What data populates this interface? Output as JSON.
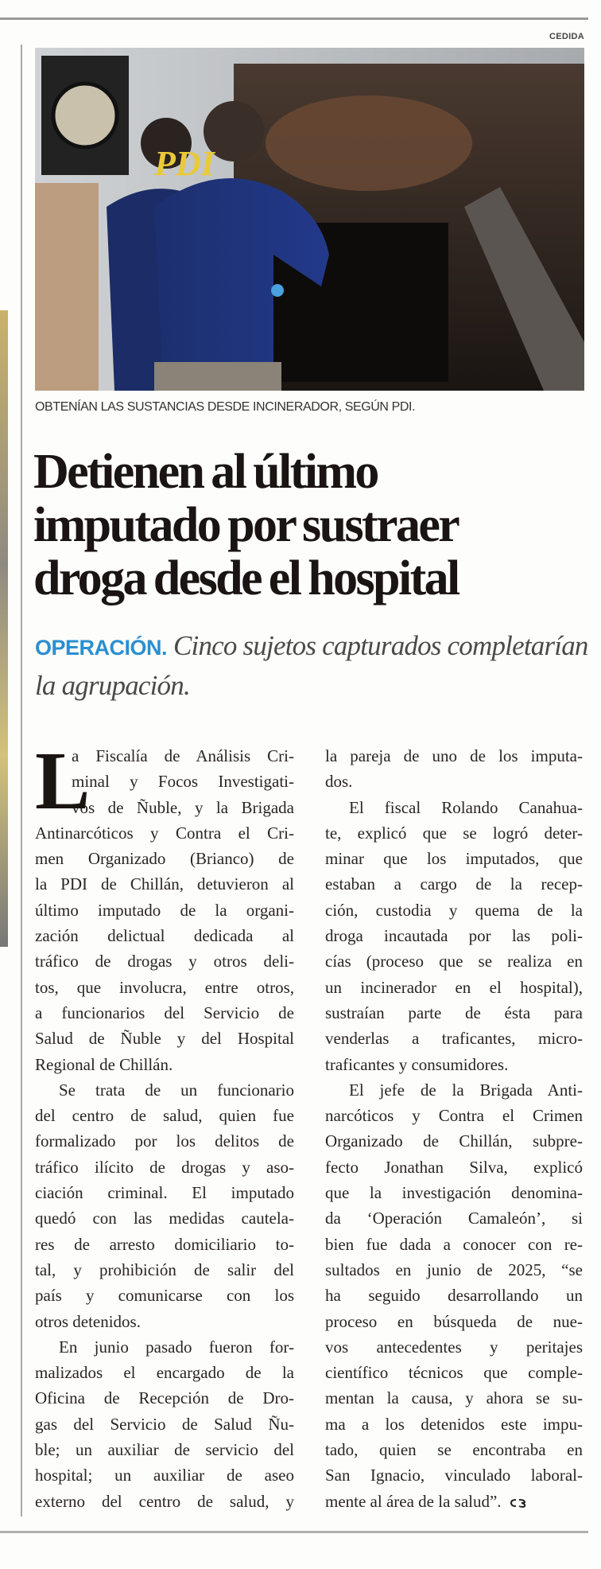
{
  "photo": {
    "credit": "CEDIDA",
    "jacket_text": "PDI",
    "caption": "OBTENÍAN LAS SUSTANCIAS DESDE INCINERADOR, SEGÚN PDI."
  },
  "headline": {
    "lines": [
      "Detienen al último",
      "imputado por sustraer",
      "droga desde el hospital"
    ]
  },
  "subhead": {
    "kicker": "OPERACIÓN.",
    "text": "Cinco sujetos capturados completarían la agrupación.",
    "kicker_color": "#2a8fd0"
  },
  "article": {
    "drop_cap": "L",
    "columns": [
      {
        "paragraphs": [
          {
            "lines": [
              "a Fiscalía de Análisis Cri-",
              "minal y Focos Investigati-",
              "vos de Ñuble, y la Brigada",
              "Antinarcóticos y Contra el Cri-",
              "men Organizado (Brianco) de",
              "la PDI de Chillán, detuvieron al",
              "último imputado de la organi-",
              "zación delictual dedicada al",
              "tráfico de drogas y otros deli-",
              "tos, que involucra, entre otros,",
              "a funcionarios del Servicio de",
              "Salud de Ñuble y del Hospital",
              "Regional de Chillán."
            ]
          },
          {
            "lines": [
              "Se trata de un funcionario",
              "del centro de salud, quien fue",
              "formalizado por los delitos de",
              "tráfico ilícito de drogas y aso-",
              "ciación criminal. El imputado",
              "quedó con las medidas cautela-",
              "res de arresto domiciliario to-",
              "tal, y prohibición de salir del",
              "país y comunicarse con los",
              "otros detenidos."
            ]
          },
          {
            "lines": [
              "En junio pasado fueron for-",
              "malizados el encargado de la",
              "Oficina de Recepción de Dro-",
              "gas del Servicio de Salud Ñu-",
              "ble; un auxiliar de servicio del",
              "hospital; un auxiliar de aseo",
              "externo del centro de salud, y"
            ]
          }
        ]
      },
      {
        "paragraphs": [
          {
            "lines": [
              "la pareja de uno de los imputa-",
              "dos."
            ]
          },
          {
            "lines": [
              "El fiscal Rolando Canahua-",
              "te, explicó que se logró deter-",
              "minar que los imputados, que",
              "estaban a cargo de la recep-",
              "ción, custodia y quema de la",
              "droga incautada por las poli-",
              "cías (proceso que se realiza en",
              "un incinerador en el hospital),",
              "sustraían parte de ésta para",
              "venderlas a traficantes, micro-",
              "traficantes y consumidores."
            ]
          },
          {
            "lines": [
              "El jefe de la Brigada Anti-",
              "narcóticos y Contra el Crimen",
              "Organizado de Chillán, subpre-",
              "fecto Jonathan Silva, explicó",
              "que la investigación denomina-",
              "da ‘Operación Camaleón’, si",
              "bien fue dada a conocer con re-",
              "sultados en junio de 2025, “se",
              "ha seguido desarrollando un",
              "proceso en búsqueda de nue-",
              "vos antecedentes y peritajes",
              "científico técnicos que comple-",
              "mentan la causa, y ahora se su-",
              "ma a los detenidos este impu-",
              "tado, quien se encontraba en",
              "San Ignacio, vinculado laboral-",
              "mente al área de la salud”."
            ]
          }
        ]
      }
    ]
  }
}
